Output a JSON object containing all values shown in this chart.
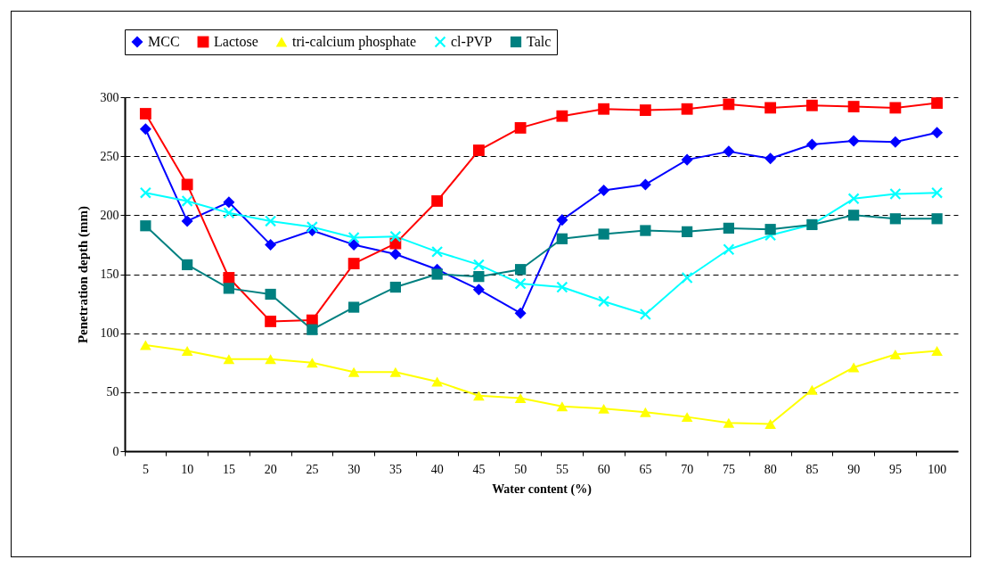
{
  "chart_data": {
    "type": "line",
    "xlabel": "Water content (%)",
    "ylabel": "Penetration depth (mm)",
    "categories": [
      "5",
      "10",
      "15",
      "20",
      "25",
      "30",
      "35",
      "40",
      "45",
      "50",
      "55",
      "60",
      "65",
      "70",
      "75",
      "80",
      "85",
      "90",
      "95",
      "100"
    ],
    "ylim": [
      0,
      300
    ],
    "yticks": [
      0,
      50,
      100,
      150,
      200,
      250,
      300
    ],
    "grid": "y",
    "legend": "top",
    "series": [
      {
        "name": "MCC",
        "color": "#0000ff",
        "marker": "diamond",
        "values": [
          273,
          195,
          211,
          175,
          187,
          175,
          167,
          154,
          137,
          117,
          196,
          221,
          226,
          247,
          254,
          248,
          260,
          263,
          262,
          270
        ]
      },
      {
        "name": "Lactose",
        "color": "#ff0000",
        "marker": "square",
        "values": [
          286,
          226,
          147,
          110,
          111,
          159,
          176,
          212,
          255,
          274,
          284,
          290,
          289,
          290,
          294,
          291,
          293,
          292,
          291,
          295
        ]
      },
      {
        "name": "tri-calcium phosphate",
        "color": "#ffff00",
        "marker": "triangle",
        "values": [
          90,
          85,
          78,
          78,
          75,
          67,
          67,
          59,
          47,
          45,
          38,
          36,
          33,
          29,
          24,
          23,
          52,
          71,
          82,
          85
        ]
      },
      {
        "name": "cl-PVP",
        "color": "#00ffff",
        "marker": "cross",
        "values": [
          219,
          212,
          202,
          195,
          190,
          181,
          182,
          169,
          158,
          142,
          139,
          127,
          116,
          147,
          171,
          183,
          192,
          214,
          218,
          219
        ]
      },
      {
        "name": "Talc",
        "color": "#008080",
        "marker": "square",
        "values": [
          191,
          158,
          138,
          133,
          103,
          122,
          139,
          150,
          148,
          154,
          180,
          184,
          187,
          186,
          189,
          188,
          192,
          200,
          197,
          197
        ]
      }
    ]
  }
}
